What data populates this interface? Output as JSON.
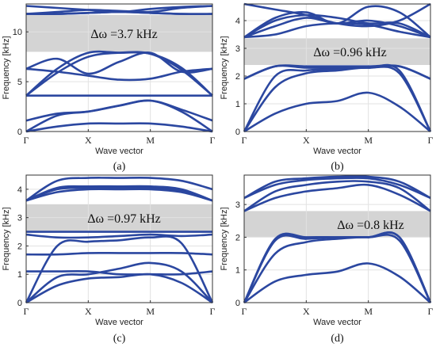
{
  "chart_data": [
    {
      "type": "line",
      "caption": "(a)",
      "xlabel": "Wave vector",
      "ylabel": "Frequency [kHz]",
      "xticks": [
        "Γ",
        "X",
        "M",
        "Γ"
      ],
      "ylim": [
        0,
        12.8
      ],
      "yticks": [
        0,
        5,
        10
      ],
      "grid": true,
      "band_gap": {
        "range": [
          8.0,
          11.7
        ],
        "label": "Δω =3.7 kHz"
      },
      "x": [
        0,
        0.5,
        1,
        1.5,
        2,
        2.5,
        3
      ],
      "series": [
        {
          "values": [
            0,
            0.5,
            0.8,
            0.8,
            0.8,
            0.5,
            0
          ]
        },
        {
          "values": [
            0,
            1.6,
            2.0,
            2.6,
            3.1,
            2.0,
            0
          ]
        },
        {
          "values": [
            1.1,
            1.8,
            2.0,
            2.6,
            3.1,
            2.2,
            1.1
          ]
        },
        {
          "values": [
            3.6,
            3.6,
            3.6,
            3.6,
            3.6,
            3.6,
            3.6
          ]
        },
        {
          "values": [
            3.6,
            5.9,
            7.5,
            7.9,
            7.8,
            6.2,
            3.6
          ]
        },
        {
          "values": [
            3.6,
            6.3,
            7.9,
            7.9,
            7.8,
            6.4,
            3.6
          ]
        },
        {
          "values": [
            6.3,
            6.0,
            5.6,
            5.2,
            5.3,
            6.0,
            6.3
          ]
        },
        {
          "values": [
            6.3,
            7.3,
            5.8,
            7.0,
            7.9,
            6.0,
            6.3
          ]
        },
        {
          "values": [
            11.8,
            11.8,
            11.9,
            12.0,
            11.9,
            11.8,
            11.8
          ]
        },
        {
          "values": [
            11.8,
            11.8,
            11.9,
            12.0,
            11.9,
            11.8,
            11.8
          ]
        },
        {
          "values": [
            11.8,
            12.0,
            12.2,
            12.1,
            12.0,
            12.4,
            12.6
          ]
        },
        {
          "values": [
            12.6,
            12.4,
            12.2,
            12.0,
            12.3,
            12.5,
            12.6
          ]
        }
      ]
    },
    {
      "type": "line",
      "caption": "(b)",
      "xlabel": "Wave vector",
      "ylabel": "Frequency [kHz]",
      "xticks": [
        "Γ",
        "X",
        "M",
        "Γ"
      ],
      "ylim": [
        0,
        4.6
      ],
      "yticks": [
        0,
        1,
        2,
        3,
        4
      ],
      "grid": true,
      "band_gap": {
        "range": [
          2.4,
          3.36
        ],
        "label": "Δω =0.96 kHz"
      },
      "x": [
        0,
        0.5,
        1,
        1.5,
        2,
        2.5,
        3
      ],
      "series": [
        {
          "values": [
            0,
            0.65,
            1.0,
            1.1,
            1.4,
            0.9,
            0
          ]
        },
        {
          "values": [
            0,
            1.6,
            2.1,
            2.2,
            2.3,
            2.1,
            0
          ]
        },
        {
          "values": [
            0,
            2.0,
            2.2,
            2.25,
            2.3,
            2.2,
            0
          ]
        },
        {
          "values": [
            1.9,
            2.35,
            2.3,
            2.3,
            2.3,
            2.35,
            1.9
          ]
        },
        {
          "values": [
            1.9,
            2.35,
            2.35,
            2.35,
            2.35,
            2.35,
            1.9
          ]
        },
        {
          "values": [
            3.4,
            3.5,
            3.8,
            3.9,
            3.85,
            3.6,
            3.4
          ]
        },
        {
          "values": [
            3.4,
            3.8,
            4.1,
            3.9,
            4.0,
            3.8,
            3.4
          ]
        },
        {
          "values": [
            3.4,
            4.0,
            4.2,
            4.1,
            3.9,
            3.9,
            3.4
          ]
        },
        {
          "values": [
            3.4,
            4.1,
            4.3,
            3.9,
            4.5,
            4.3,
            3.4
          ]
        },
        {
          "values": [
            4.6,
            4.4,
            4.2,
            3.9,
            3.8,
            4.0,
            4.6
          ]
        }
      ]
    },
    {
      "type": "line",
      "caption": "(c)",
      "xlabel": "Wave vector",
      "ylabel": "Frequency [kHz]",
      "xticks": [
        "Γ",
        "X",
        "M",
        "Γ"
      ],
      "ylim": [
        0,
        4.5
      ],
      "yticks": [
        0,
        1,
        2,
        3,
        4
      ],
      "grid": true,
      "band_gap": {
        "range": [
          2.5,
          3.47
        ],
        "label": "Δω =0.97 kHz"
      },
      "x": [
        0,
        0.5,
        1,
        1.5,
        2,
        2.5,
        3
      ],
      "series": [
        {
          "values": [
            0,
            0.6,
            0.85,
            0.9,
            1.0,
            0.7,
            0
          ]
        },
        {
          "values": [
            0,
            0.9,
            1.0,
            1.2,
            1.4,
            1.1,
            0
          ]
        },
        {
          "values": [
            1.1,
            1.1,
            1.1,
            1.0,
            1.0,
            1.0,
            1.1
          ]
        },
        {
          "values": [
            1.7,
            1.7,
            1.75,
            1.75,
            1.75,
            1.75,
            1.7
          ]
        },
        {
          "values": [
            0,
            2.0,
            2.15,
            2.2,
            2.3,
            2.1,
            0
          ]
        },
        {
          "values": [
            2.4,
            2.3,
            2.3,
            2.35,
            2.4,
            2.35,
            2.4
          ]
        },
        {
          "values": [
            2.5,
            2.5,
            2.5,
            2.5,
            2.5,
            2.5,
            2.5
          ]
        },
        {
          "values": [
            3.6,
            3.9,
            4.0,
            4.0,
            4.0,
            3.9,
            3.6
          ]
        },
        {
          "values": [
            3.6,
            4.0,
            4.05,
            4.05,
            4.05,
            3.95,
            3.6
          ]
        },
        {
          "values": [
            3.6,
            4.05,
            4.1,
            4.1,
            4.1,
            4.0,
            3.6
          ]
        },
        {
          "values": [
            3.6,
            4.3,
            4.4,
            4.4,
            4.4,
            4.3,
            4.0
          ]
        }
      ]
    },
    {
      "type": "line",
      "caption": "(d)",
      "xlabel": "Wave vector",
      "ylabel": "Frequency [kHz]",
      "xticks": [
        "Γ",
        "X",
        "M",
        "Γ"
      ],
      "ylim": [
        0,
        3.9
      ],
      "yticks": [
        0,
        1,
        2,
        3
      ],
      "grid": true,
      "band_gap": {
        "range": [
          2.0,
          2.8
        ],
        "label": "Δω =0.8 kHz"
      },
      "x": [
        0,
        0.5,
        1,
        1.5,
        2,
        2.5,
        3
      ],
      "series": [
        {
          "values": [
            0,
            0.65,
            0.85,
            0.95,
            1.2,
            0.8,
            0
          ]
        },
        {
          "values": [
            0,
            1.5,
            1.85,
            1.95,
            2.0,
            1.9,
            0
          ]
        },
        {
          "values": [
            0,
            1.9,
            1.95,
            2.0,
            2.0,
            2.0,
            0
          ]
        },
        {
          "values": [
            0,
            1.95,
            2.0,
            2.0,
            2.0,
            2.0,
            0
          ]
        },
        {
          "values": [
            2.8,
            3.2,
            3.4,
            3.5,
            3.6,
            3.3,
            2.8
          ]
        },
        {
          "values": [
            2.8,
            3.4,
            3.6,
            3.7,
            3.7,
            3.5,
            2.8
          ]
        },
        {
          "values": [
            3.2,
            3.6,
            3.75,
            3.8,
            3.8,
            3.6,
            3.2
          ]
        },
        {
          "values": [
            3.2,
            3.7,
            3.8,
            3.85,
            3.85,
            3.7,
            3.2
          ]
        }
      ]
    }
  ]
}
